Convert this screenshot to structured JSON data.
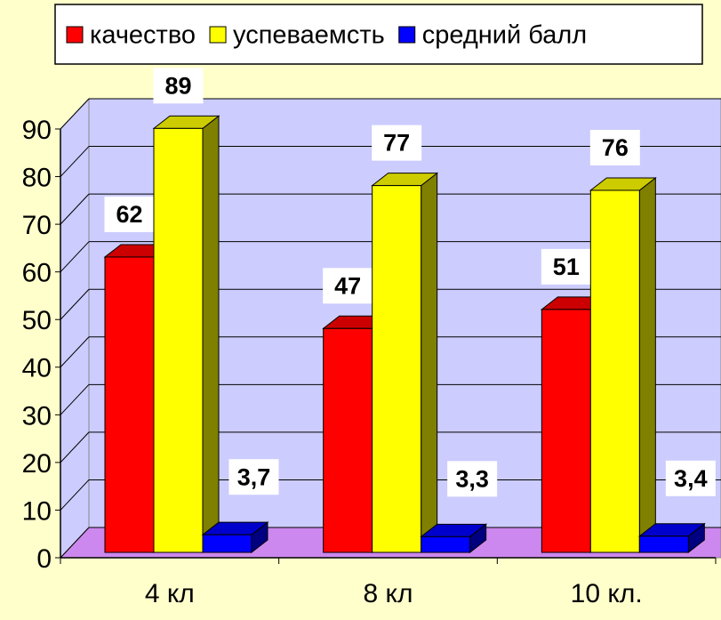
{
  "chart_data": {
    "type": "bar3d",
    "categories": [
      "4 кл",
      "8 кл",
      "10 кл."
    ],
    "series": [
      {
        "name": "качество",
        "color": "#ff0000",
        "values": [
          62,
          47,
          51
        ]
      },
      {
        "name": "успеваемсть",
        "color": "#ffff00",
        "values": [
          89,
          77,
          76
        ]
      },
      {
        "name": "средний балл",
        "color": "#0000ff",
        "values": [
          3.7,
          3.3,
          3.4
        ],
        "value_labels": [
          "3,7",
          "3,3",
          "3,4"
        ]
      }
    ],
    "ylim": [
      0,
      90
    ],
    "yticks": [
      0,
      10,
      20,
      30,
      40,
      50,
      60,
      70,
      80,
      90
    ],
    "grid": true,
    "legend": "top"
  }
}
